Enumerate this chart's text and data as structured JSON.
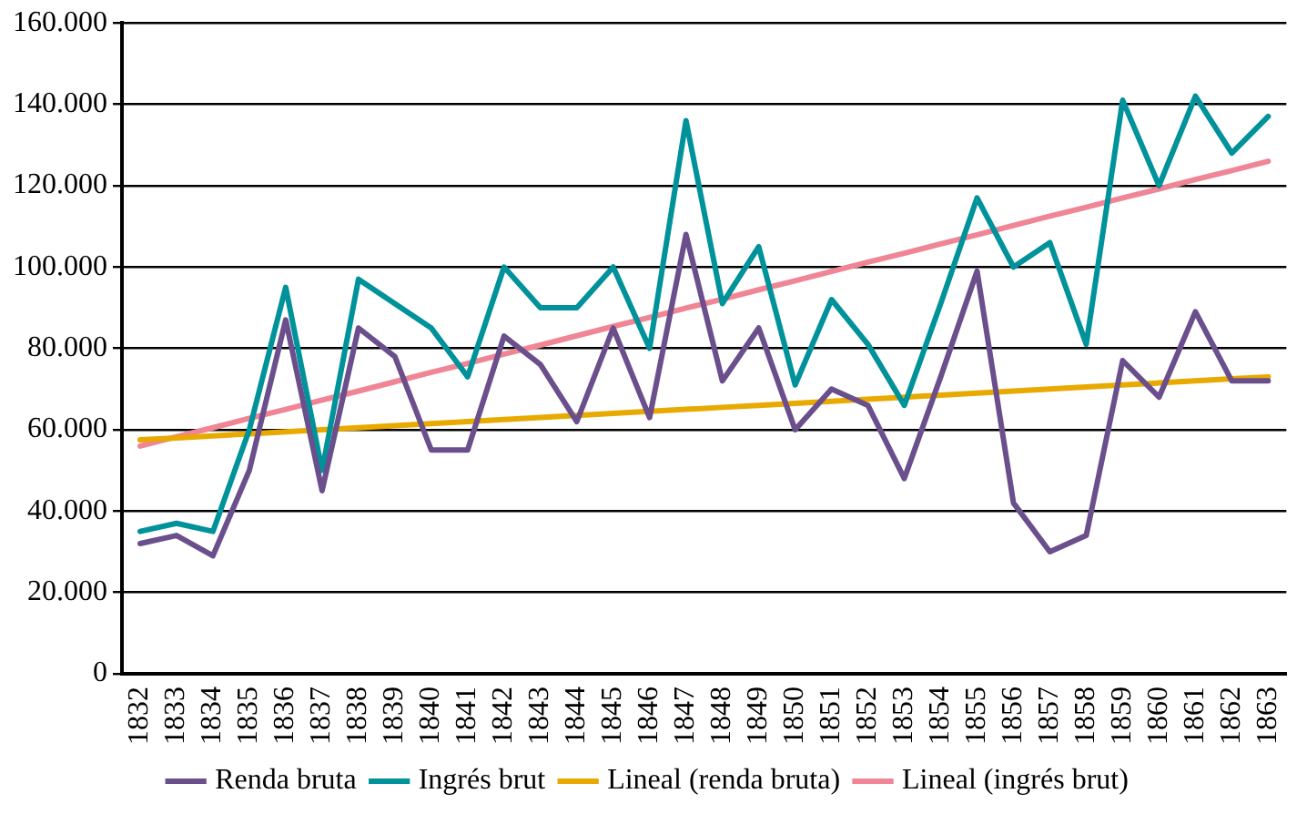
{
  "chart_data": {
    "type": "line",
    "categories": [
      "1832",
      "1833",
      "1834",
      "1835",
      "1836",
      "1837",
      "1838",
      "1839",
      "1840",
      "1841",
      "1842",
      "1843",
      "1844",
      "1845",
      "1846",
      "1847",
      "1848",
      "1849",
      "1850",
      "1851",
      "1852",
      "1853",
      "1854",
      "1855",
      "1856",
      "1857",
      "1858",
      "1859",
      "1860",
      "1861",
      "1862",
      "1863"
    ],
    "series": [
      {
        "name": "Renda bruta",
        "color": "#6a4f8c",
        "values": [
          32000,
          34000,
          29000,
          50000,
          87000,
          45000,
          85000,
          78000,
          55000,
          55000,
          83000,
          76000,
          62000,
          85000,
          63000,
          108000,
          72000,
          85000,
          60000,
          70000,
          66000,
          48000,
          73000,
          99000,
          42000,
          30000,
          34000,
          77000,
          68000,
          89000,
          72000,
          72000
        ]
      },
      {
        "name": "Ingrés brut",
        "color": "#00929a",
        "values": [
          35000,
          37000,
          35000,
          60000,
          95000,
          50000,
          97000,
          91000,
          85000,
          73000,
          100000,
          90000,
          90000,
          100000,
          80000,
          136000,
          91000,
          105000,
          71000,
          92000,
          81000,
          66000,
          91000,
          117000,
          100000,
          106000,
          81000,
          141000,
          120000,
          142000,
          128000,
          137000
        ]
      },
      {
        "name": "Lineal (renda bruta)",
        "color": "#e8a900",
        "values": [
          57500,
          58000,
          58500,
          59000,
          59500,
          60000,
          60500,
          61000,
          61500,
          62000,
          62500,
          63000,
          63500,
          64000,
          64500,
          65000,
          65500,
          66000,
          66500,
          67000,
          67500,
          68000,
          68500,
          69000,
          69500,
          70000,
          70500,
          71000,
          71500,
          72000,
          72500,
          73000
        ]
      },
      {
        "name": "Lineal (ingrés brut)",
        "color": "#ef8595",
        "values": [
          56000,
          58300,
          60500,
          62800,
          65000,
          67300,
          69500,
          71800,
          74100,
          76300,
          78600,
          80800,
          83100,
          85400,
          87600,
          89900,
          92100,
          94400,
          96600,
          98900,
          101200,
          103400,
          105700,
          107900,
          110200,
          112500,
          114700,
          117000,
          119200,
          121500,
          123700,
          126000
        ]
      }
    ],
    "ylim": [
      0,
      160000
    ],
    "yticks": [
      {
        "value": 0,
        "label": "0"
      },
      {
        "value": 20000,
        "label": "20.000"
      },
      {
        "value": 40000,
        "label": "40.000"
      },
      {
        "value": 60000,
        "label": "60.000"
      },
      {
        "value": 80000,
        "label": "80.000"
      },
      {
        "value": 100000,
        "label": "100.000"
      },
      {
        "value": 120000,
        "label": "120.000"
      },
      {
        "value": 140000,
        "label": "140.000"
      },
      {
        "value": 160000,
        "label": "160.000"
      }
    ],
    "grid": "y",
    "legend": "bottom",
    "marker": "none",
    "line_style": "solid"
  }
}
